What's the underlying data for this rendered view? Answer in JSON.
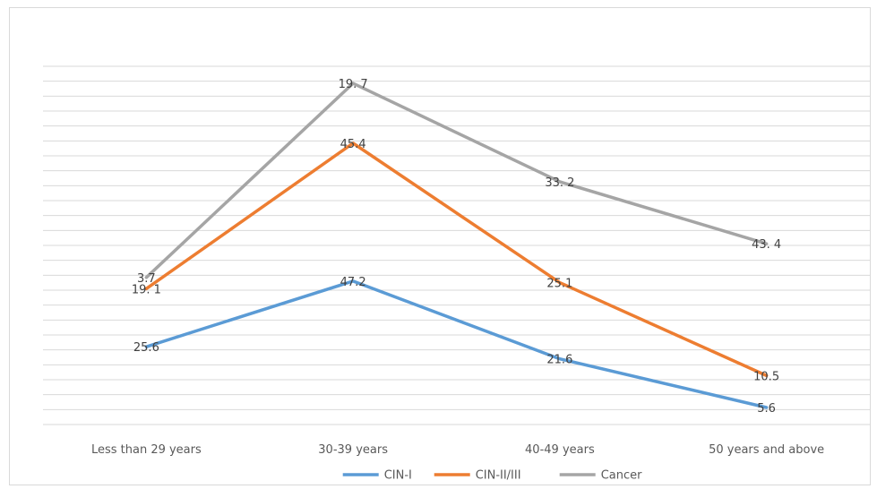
{
  "chart_data": {
    "type": "line",
    "categories": [
      "Less than 29 years",
      "30-39 years",
      "40-49 years",
      "50 years and above"
    ],
    "series": [
      {
        "name": "CIN-I",
        "color": "#5b9bd5",
        "labels": [
          "25.6",
          "47.2",
          "21.6",
          "5.6"
        ],
        "values": [
          25.6,
          47.2,
          21.6,
          5.6
        ]
      },
      {
        "name": "CIN-II/III",
        "color": "#ed7d31",
        "labels": [
          "19. 1",
          "45.4",
          "25.1",
          "10.5"
        ],
        "values": [
          19.1,
          45.4,
          25.1,
          10.5
        ]
      },
      {
        "name": "Cancer",
        "color": "#a5a5a5",
        "labels": [
          "3.7",
          "19. 7",
          "33. 2",
          "43. 4"
        ],
        "values": [
          3.7,
          19.7,
          33.2,
          43.4
        ]
      }
    ],
    "stacked": true,
    "grid": true,
    "legend_position": "bottom",
    "title": "",
    "xlabel": "",
    "ylabel": ""
  }
}
